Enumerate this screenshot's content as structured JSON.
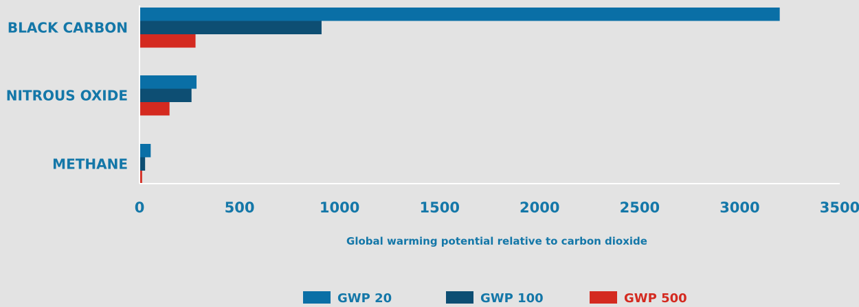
{
  "colors": {
    "background": "#e3e3e3",
    "text": "#1477a8",
    "axis": "#ffffff"
  },
  "chart_data": {
    "type": "bar",
    "orientation": "horizontal",
    "categories": [
      "BLACK CARBON",
      "NITROUS OXIDE",
      "METHANE"
    ],
    "series": [
      {
        "name": "GWP 20",
        "color": "#0a6fa6",
        "values": [
          3200,
          285,
          56
        ]
      },
      {
        "name": "GWP 100",
        "color": "#0d4e73",
        "values": [
          910,
          260,
          28
        ]
      },
      {
        "name": "GWP 500",
        "color": "#d42a20",
        "values": [
          280,
          150,
          13
        ]
      }
    ],
    "xlabel": "Global warming potential relative to carbon dioxide",
    "xlim": [
      0,
      3500
    ],
    "xticks": [
      0,
      500,
      1000,
      1500,
      2000,
      2500,
      3000,
      3500
    ],
    "grid": false,
    "legend_position": "bottom"
  }
}
